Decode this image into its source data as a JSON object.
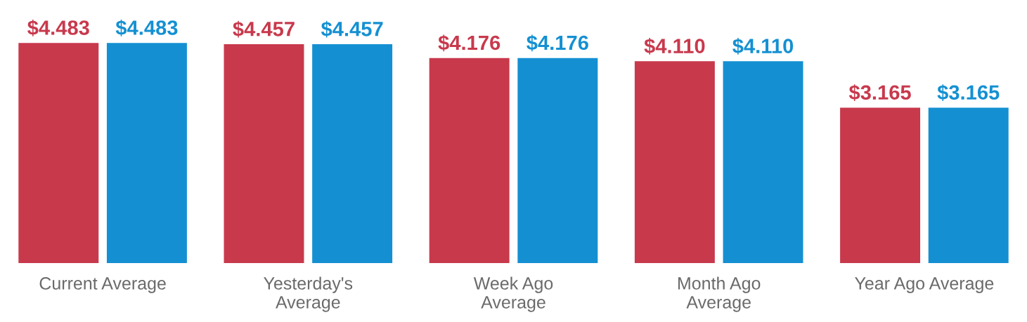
{
  "chart_data": {
    "type": "bar",
    "categories": [
      "Current Average",
      "Yesterday's\nAverage",
      "Week Ago\nAverage",
      "Month Ago\nAverage",
      "Year Ago Average"
    ],
    "series": [
      {
        "color": "#c8394c",
        "values": [
          4.483,
          4.457,
          4.176,
          4.11,
          3.165
        ],
        "value_labels": [
          "$4.483",
          "$4.457",
          "$4.176",
          "$4.110",
          "$3.165"
        ]
      },
      {
        "color": "#1490d2",
        "values": [
          4.483,
          4.457,
          4.176,
          4.11,
          3.165
        ],
        "value_labels": [
          "$4.483",
          "$4.457",
          "$4.176",
          "$4.110",
          "$3.165"
        ]
      }
    ]
  }
}
